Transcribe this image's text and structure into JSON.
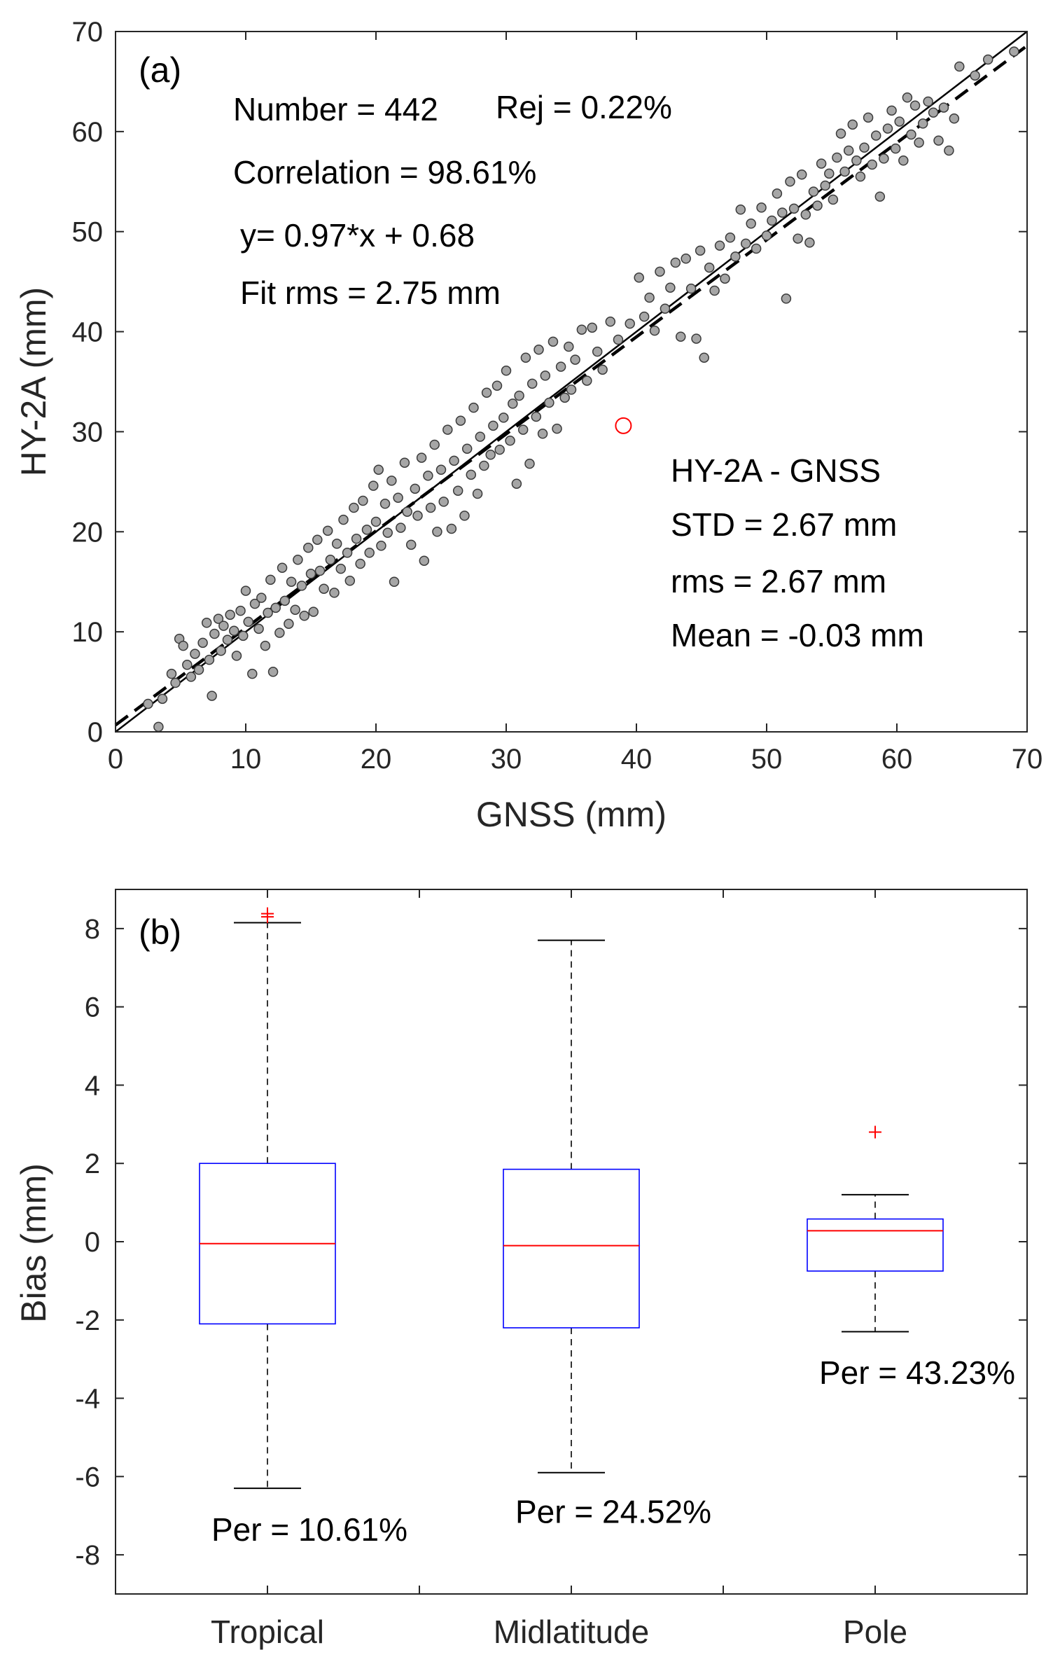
{
  "colors": {
    "axis": "#262626",
    "point_fill": "#a6a6a6",
    "point_edge": "#3a3a3a",
    "rejected": "#ff0000",
    "box": "#0000ff",
    "median": "#ff0000",
    "whisker": "#000000",
    "outlier": "#ff0000"
  },
  "chart_data": [
    {
      "type": "scatter",
      "panel_label": "(a)",
      "xlabel": "GNSS (mm)",
      "ylabel": "HY-2A (mm)",
      "xlim": [
        0,
        70
      ],
      "ylim": [
        0,
        70
      ],
      "xticks": [
        "0",
        "10",
        "20",
        "30",
        "40",
        "50",
        "60",
        "70"
      ],
      "yticks": [
        "0",
        "10",
        "20",
        "30",
        "40",
        "50",
        "60",
        "70"
      ],
      "stats": {
        "number": "Number = 442",
        "rej": "Rej = 0.22%",
        "correlation": "Correlation = 98.61%",
        "equation": "y= 0.97*x + 0.68",
        "fit_rms": "Fit rms = 2.75 mm"
      },
      "diff_stats": {
        "title": "HY-2A - GNSS",
        "std": "STD = 2.67 mm",
        "rms": "rms = 2.67 mm",
        "mean": "Mean = -0.03 mm"
      },
      "lines": {
        "one_to_one": {
          "slope": 1.0,
          "intercept": 0.0,
          "style": "solid"
        },
        "fit": {
          "slope": 0.97,
          "intercept": 0.68,
          "style": "dashed"
        }
      },
      "rejected_point": {
        "x": 39.0,
        "y": 30.6
      },
      "points": [
        [
          3.3,
          0.5
        ],
        [
          2.5,
          2.8
        ],
        [
          3.6,
          3.3
        ],
        [
          4.3,
          5.8
        ],
        [
          4.6,
          4.9
        ],
        [
          4.9,
          9.3
        ],
        [
          5.2,
          8.6
        ],
        [
          5.5,
          6.7
        ],
        [
          5.8,
          5.5
        ],
        [
          6.1,
          7.8
        ],
        [
          6.4,
          6.2
        ],
        [
          6.7,
          8.9
        ],
        [
          7.0,
          10.9
        ],
        [
          7.2,
          7.2
        ],
        [
          7.4,
          3.6
        ],
        [
          7.6,
          9.8
        ],
        [
          7.9,
          11.3
        ],
        [
          8.1,
          8.1
        ],
        [
          8.3,
          10.6
        ],
        [
          8.6,
          9.2
        ],
        [
          8.8,
          11.7
        ],
        [
          9.1,
          10.1
        ],
        [
          9.3,
          7.6
        ],
        [
          9.6,
          12.1
        ],
        [
          9.8,
          9.6
        ],
        [
          10.0,
          14.1
        ],
        [
          10.2,
          11.0
        ],
        [
          10.5,
          5.8
        ],
        [
          10.7,
          12.8
        ],
        [
          11.0,
          10.3
        ],
        [
          11.2,
          13.4
        ],
        [
          11.5,
          8.6
        ],
        [
          11.7,
          11.9
        ],
        [
          11.9,
          15.2
        ],
        [
          12.1,
          6.0
        ],
        [
          12.3,
          12.4
        ],
        [
          12.6,
          9.9
        ],
        [
          12.8,
          16.4
        ],
        [
          13.0,
          13.1
        ],
        [
          13.3,
          10.8
        ],
        [
          13.5,
          15.0
        ],
        [
          13.8,
          12.2
        ],
        [
          14.0,
          17.2
        ],
        [
          14.3,
          14.6
        ],
        [
          14.5,
          11.6
        ],
        [
          14.8,
          18.4
        ],
        [
          15.0,
          15.8
        ],
        [
          15.2,
          12.0
        ],
        [
          15.5,
          19.2
        ],
        [
          15.7,
          16.1
        ],
        [
          16.0,
          14.3
        ],
        [
          16.3,
          20.1
        ],
        [
          16.5,
          17.2
        ],
        [
          16.8,
          13.9
        ],
        [
          17.0,
          18.8
        ],
        [
          17.3,
          16.3
        ],
        [
          17.5,
          21.2
        ],
        [
          17.8,
          17.9
        ],
        [
          18.0,
          15.1
        ],
        [
          18.3,
          22.4
        ],
        [
          18.5,
          19.3
        ],
        [
          18.8,
          16.8
        ],
        [
          19.0,
          23.1
        ],
        [
          19.3,
          20.2
        ],
        [
          19.5,
          17.9
        ],
        [
          19.8,
          24.6
        ],
        [
          20.0,
          21.0
        ],
        [
          20.2,
          26.2
        ],
        [
          20.4,
          18.6
        ],
        [
          20.7,
          22.8
        ],
        [
          20.9,
          19.9
        ],
        [
          21.2,
          25.1
        ],
        [
          21.4,
          15.0
        ],
        [
          21.7,
          23.4
        ],
        [
          21.9,
          20.4
        ],
        [
          22.2,
          26.9
        ],
        [
          22.4,
          22.0
        ],
        [
          22.7,
          18.7
        ],
        [
          23.0,
          24.3
        ],
        [
          23.2,
          21.6
        ],
        [
          23.5,
          27.4
        ],
        [
          23.7,
          17.1
        ],
        [
          24.0,
          25.6
        ],
        [
          24.2,
          22.4
        ],
        [
          24.5,
          28.7
        ],
        [
          24.7,
          20.0
        ],
        [
          25.0,
          26.2
        ],
        [
          25.2,
          23.0
        ],
        [
          25.5,
          30.2
        ],
        [
          25.8,
          20.3
        ],
        [
          26.0,
          27.1
        ],
        [
          26.3,
          24.1
        ],
        [
          26.5,
          31.1
        ],
        [
          26.8,
          21.6
        ],
        [
          27.0,
          28.3
        ],
        [
          27.3,
          25.7
        ],
        [
          27.5,
          32.4
        ],
        [
          27.8,
          23.8
        ],
        [
          28.0,
          29.5
        ],
        [
          28.3,
          26.6
        ],
        [
          28.5,
          33.9
        ],
        [
          28.8,
          27.7
        ],
        [
          29.0,
          30.6
        ],
        [
          29.3,
          34.6
        ],
        [
          29.5,
          28.2
        ],
        [
          29.8,
          31.4
        ],
        [
          30.0,
          36.1
        ],
        [
          30.3,
          29.1
        ],
        [
          30.5,
          32.8
        ],
        [
          30.8,
          24.8
        ],
        [
          31.0,
          33.6
        ],
        [
          31.3,
          30.2
        ],
        [
          31.5,
          37.4
        ],
        [
          31.8,
          26.8
        ],
        [
          32.0,
          34.8
        ],
        [
          32.3,
          31.5
        ],
        [
          32.5,
          38.2
        ],
        [
          32.8,
          29.8
        ],
        [
          33.0,
          35.6
        ],
        [
          33.3,
          32.9
        ],
        [
          33.6,
          39.0
        ],
        [
          33.9,
          30.3
        ],
        [
          34.2,
          36.5
        ],
        [
          34.5,
          33.4
        ],
        [
          34.8,
          38.5
        ],
        [
          35.0,
          34.2
        ],
        [
          35.3,
          37.2
        ],
        [
          35.8,
          40.2
        ],
        [
          36.2,
          35.1
        ],
        [
          36.6,
          40.4
        ],
        [
          37.0,
          38.0
        ],
        [
          37.4,
          36.2
        ],
        [
          38.0,
          41.0
        ],
        [
          38.6,
          39.2
        ],
        [
          39.5,
          40.8
        ],
        [
          40.2,
          45.4
        ],
        [
          40.6,
          41.5
        ],
        [
          41.0,
          43.4
        ],
        [
          41.4,
          40.1
        ],
        [
          41.8,
          46.0
        ],
        [
          42.2,
          42.3
        ],
        [
          42.6,
          44.4
        ],
        [
          43.0,
          46.9
        ],
        [
          43.4,
          39.5
        ],
        [
          43.8,
          47.3
        ],
        [
          44.2,
          44.3
        ],
        [
          44.6,
          39.3
        ],
        [
          44.9,
          48.1
        ],
        [
          45.2,
          37.4
        ],
        [
          45.6,
          46.4
        ],
        [
          46.0,
          44.1
        ],
        [
          46.4,
          48.6
        ],
        [
          46.8,
          45.3
        ],
        [
          47.2,
          49.4
        ],
        [
          47.6,
          47.5
        ],
        [
          48.0,
          52.2
        ],
        [
          48.4,
          48.8
        ],
        [
          48.8,
          50.8
        ],
        [
          49.2,
          48.3
        ],
        [
          49.6,
          52.4
        ],
        [
          50.0,
          49.6
        ],
        [
          50.4,
          51.1
        ],
        [
          50.8,
          53.8
        ],
        [
          51.2,
          51.9
        ],
        [
          51.5,
          43.3
        ],
        [
          51.8,
          55.0
        ],
        [
          52.1,
          52.3
        ],
        [
          52.4,
          49.3
        ],
        [
          52.7,
          55.7
        ],
        [
          53.0,
          51.7
        ],
        [
          53.3,
          48.9
        ],
        [
          53.6,
          54.0
        ],
        [
          53.9,
          52.6
        ],
        [
          54.2,
          56.8
        ],
        [
          54.5,
          54.6
        ],
        [
          54.8,
          55.8
        ],
        [
          55.1,
          53.2
        ],
        [
          55.4,
          57.4
        ],
        [
          55.7,
          59.8
        ],
        [
          56.0,
          56.0
        ],
        [
          56.3,
          58.1
        ],
        [
          56.6,
          60.7
        ],
        [
          56.9,
          57.1
        ],
        [
          57.2,
          55.5
        ],
        [
          57.5,
          58.4
        ],
        [
          57.8,
          61.4
        ],
        [
          58.1,
          56.7
        ],
        [
          58.4,
          59.6
        ],
        [
          58.7,
          53.5
        ],
        [
          59.0,
          57.3
        ],
        [
          59.3,
          60.3
        ],
        [
          59.6,
          62.1
        ],
        [
          59.9,
          58.3
        ],
        [
          60.2,
          61.0
        ],
        [
          60.5,
          57.1
        ],
        [
          60.8,
          63.4
        ],
        [
          61.1,
          59.7
        ],
        [
          61.4,
          62.6
        ],
        [
          61.7,
          58.9
        ],
        [
          62.0,
          60.8
        ],
        [
          62.4,
          63.0
        ],
        [
          62.8,
          61.9
        ],
        [
          63.2,
          59.1
        ],
        [
          63.6,
          62.4
        ],
        [
          64.0,
          58.1
        ],
        [
          64.4,
          61.3
        ],
        [
          64.8,
          66.5
        ],
        [
          66.0,
          65.6
        ],
        [
          67.0,
          67.2
        ],
        [
          69.0,
          68.0
        ]
      ]
    },
    {
      "type": "box",
      "panel_label": "(b)",
      "xlabel": "",
      "ylabel": "Bias (mm)",
      "ylim": [
        -9,
        9
      ],
      "yticks": [
        "-8",
        "-6",
        "-4",
        "-2",
        "0",
        "2",
        "4",
        "6",
        "8"
      ],
      "categories": [
        "Tropical",
        "Midlatitude",
        "Pole"
      ],
      "boxes": [
        {
          "q1": -2.1,
          "median": -0.05,
          "q3": 2.0,
          "whisker_low": -6.3,
          "whisker_high": 8.15,
          "outliers": [
            8.3,
            8.38
          ],
          "per_label": "Per = 10.61%",
          "per_y": -7.35
        },
        {
          "q1": -2.2,
          "median": -0.1,
          "q3": 1.85,
          "whisker_low": -5.9,
          "whisker_high": 7.7,
          "outliers": [],
          "per_label": "Per = 24.52%",
          "per_y": -6.9
        },
        {
          "q1": -0.75,
          "median": 0.28,
          "q3": 0.58,
          "whisker_low": -2.3,
          "whisker_high": 1.2,
          "outliers": [
            2.8
          ],
          "per_label": "Per = 43.23%",
          "per_y": -3.35
        }
      ]
    }
  ]
}
